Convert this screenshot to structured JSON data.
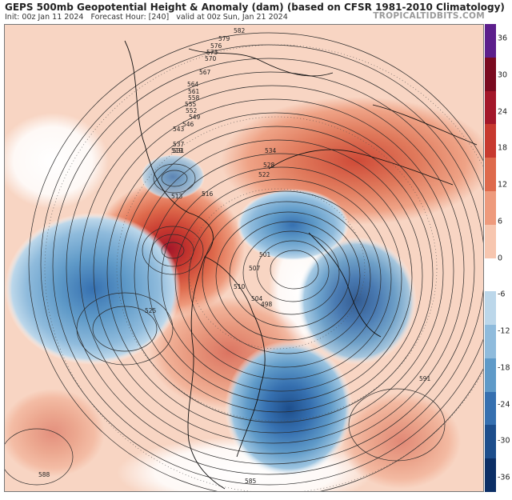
{
  "header": {
    "title": "GEPS 500mb Geopotential Height & Anomaly (dam) (based on CFSR 1981-2010 Climatology)",
    "init": "Init: 00z Jan 11 2024",
    "forecast_hour": "Forecast Hour: [240]",
    "valid": "valid at 00z Sun, Jan 21 2024",
    "brand": "TROPICALTIDBITS.COM"
  },
  "colorbar": {
    "labels": [
      "36",
      "30",
      "24",
      "18",
      "12",
      "6",
      "0",
      "-6",
      "-12",
      "-18",
      "-24",
      "-30",
      "-36"
    ],
    "colors": [
      "#5c1f8c",
      "#7a0a1f",
      "#a3172a",
      "#c7392f",
      "#de6a4c",
      "#ee9a7c",
      "#f7c6af",
      "#ffffff",
      "#bcd7ea",
      "#8fbbdc",
      "#5f9ac8",
      "#3670b0",
      "#1d4e8c",
      "#0c2f66"
    ]
  },
  "contour_labels": [
    "582",
    "579",
    "576",
    "573",
    "570",
    "567",
    "564",
    "561",
    "558",
    "555",
    "552",
    "549",
    "546",
    "543",
    "537",
    "534",
    "531",
    "528",
    "525",
    "522",
    "519",
    "516",
    "513",
    "510",
    "507",
    "504",
    "501",
    "498",
    "591",
    "588",
    "585"
  ],
  "map": {
    "anomalies": [
      {
        "name": "warm-anomaly-canada-arctic",
        "sign": "positive",
        "peak": 30
      },
      {
        "name": "warm-anomaly-siberia",
        "sign": "positive",
        "peak": 18
      },
      {
        "name": "cold-anomaly-north-pacific",
        "sign": "negative",
        "peak": -18
      },
      {
        "name": "cold-anomaly-north-atlantic",
        "sign": "negative",
        "peak": -24
      },
      {
        "name": "cold-anomaly-scandinavia",
        "sign": "negative",
        "peak": -18
      },
      {
        "name": "cold-anomaly-alaska",
        "sign": "negative",
        "peak": -12
      }
    ]
  }
}
